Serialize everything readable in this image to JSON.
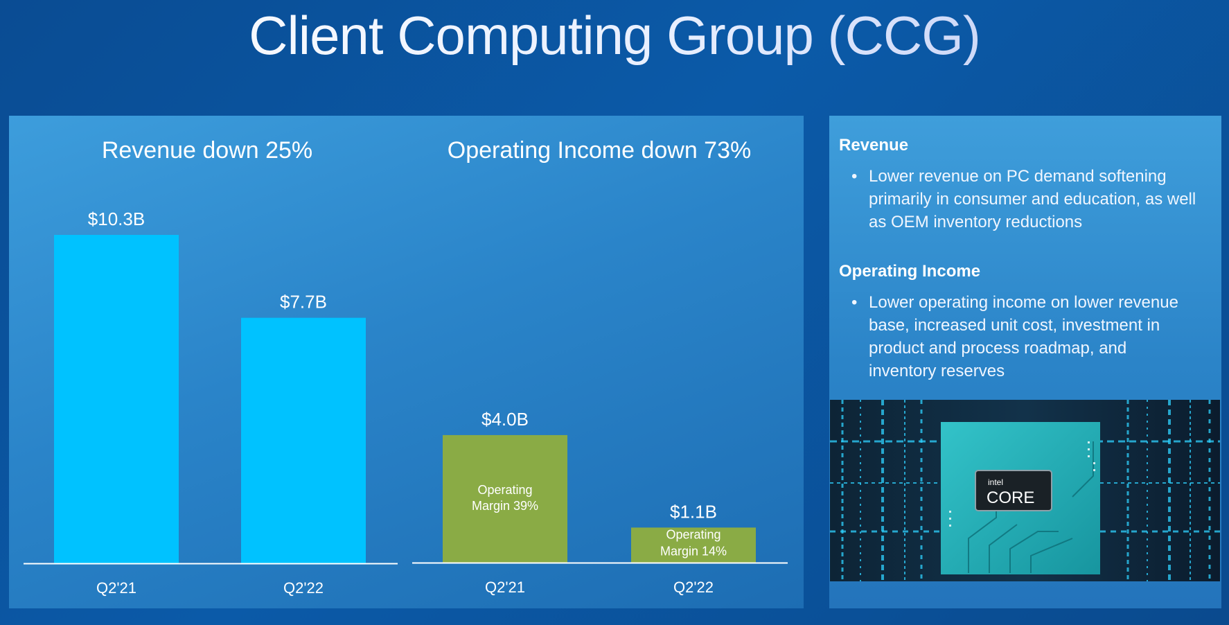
{
  "page": {
    "title": "Client Computing Group (CCG)"
  },
  "chart_data": [
    {
      "type": "bar",
      "title": "Revenue down 25%",
      "categories": [
        "Q2'21",
        "Q2'22"
      ],
      "values": [
        10.3,
        7.7
      ],
      "data_labels": [
        "$10.3B",
        "$7.7B"
      ],
      "unit": "$B",
      "ylim": [
        0,
        12.2
      ],
      "grid": false,
      "bar_color": "#00c2ff"
    },
    {
      "type": "bar",
      "title": "Operating Income down 73%",
      "categories": [
        "Q2'21",
        "Q2'22"
      ],
      "values": [
        4.0,
        1.1
      ],
      "data_labels": [
        "$4.0B",
        "$1.1B"
      ],
      "inner_labels": [
        [
          "Operating",
          "Margin 39%"
        ],
        [
          "Operating",
          "Margin 14%"
        ]
      ],
      "margins_pct": [
        39,
        14
      ],
      "unit": "$B",
      "ylim": [
        0,
        12.2
      ],
      "grid": false,
      "bar_color": "#8aab45"
    }
  ],
  "side": {
    "revenue": {
      "heading": "Revenue",
      "bullet": "Lower revenue on PC demand softening primarily in consumer and education, as well as OEM inventory reductions"
    },
    "operating_income": {
      "heading": "Operating Income",
      "bullet": "Lower operating income on lower revenue base, increased unit cost, investment in product and process roadmap, and inventory reserves"
    },
    "image": {
      "badge_small": "intel",
      "badge_large": "CORE"
    }
  },
  "colors": {
    "background": "#0b5aa8",
    "panel": "#2a84c9",
    "revenue_bar": "#00c2ff",
    "income_bar": "#8aab45"
  }
}
